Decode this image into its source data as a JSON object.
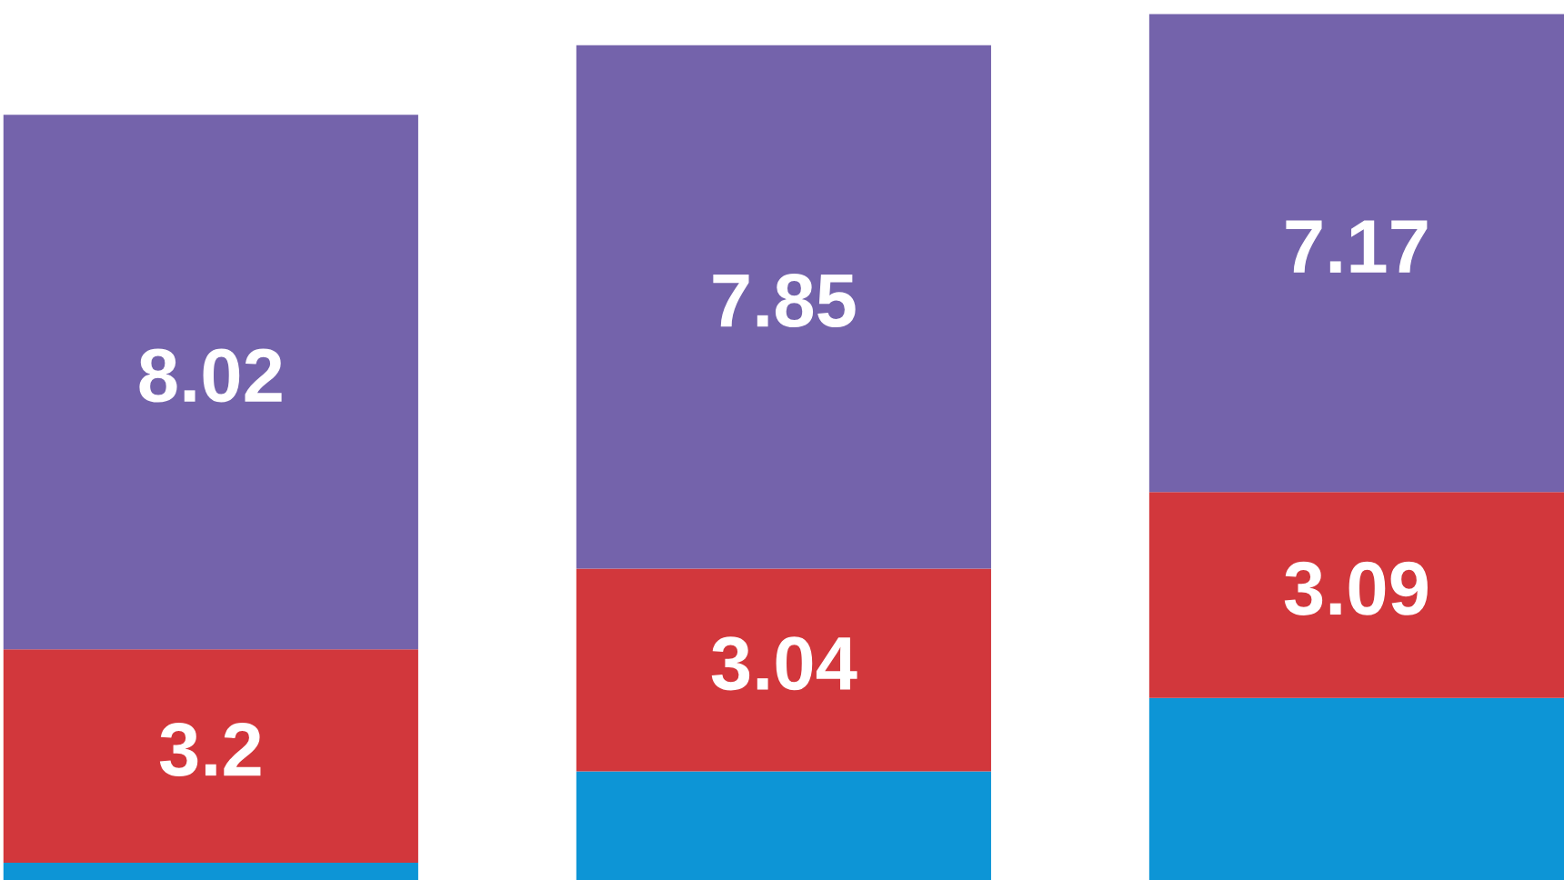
{
  "chart_data": {
    "type": "bar",
    "stacked": true,
    "categories": [
      null,
      null,
      null
    ],
    "series": [
      {
        "color": "#0d95d6",
        "values": [
          0.26,
          1.63,
          2.73
        ],
        "value_labels": [
          null,
          null,
          null
        ]
      },
      {
        "color": "#d2373c",
        "values": [
          3.2,
          3.04,
          3.09
        ],
        "value_labels": [
          "3.2",
          "3.04",
          "3.09"
        ]
      },
      {
        "color": "#7463ab",
        "values": [
          8.02,
          7.85,
          7.17
        ],
        "value_labels": [
          "8.02",
          "7.85",
          "7.17"
        ]
      }
    ],
    "ylim": [
      0,
      13.2
    ],
    "grid": false,
    "legend": false
  }
}
